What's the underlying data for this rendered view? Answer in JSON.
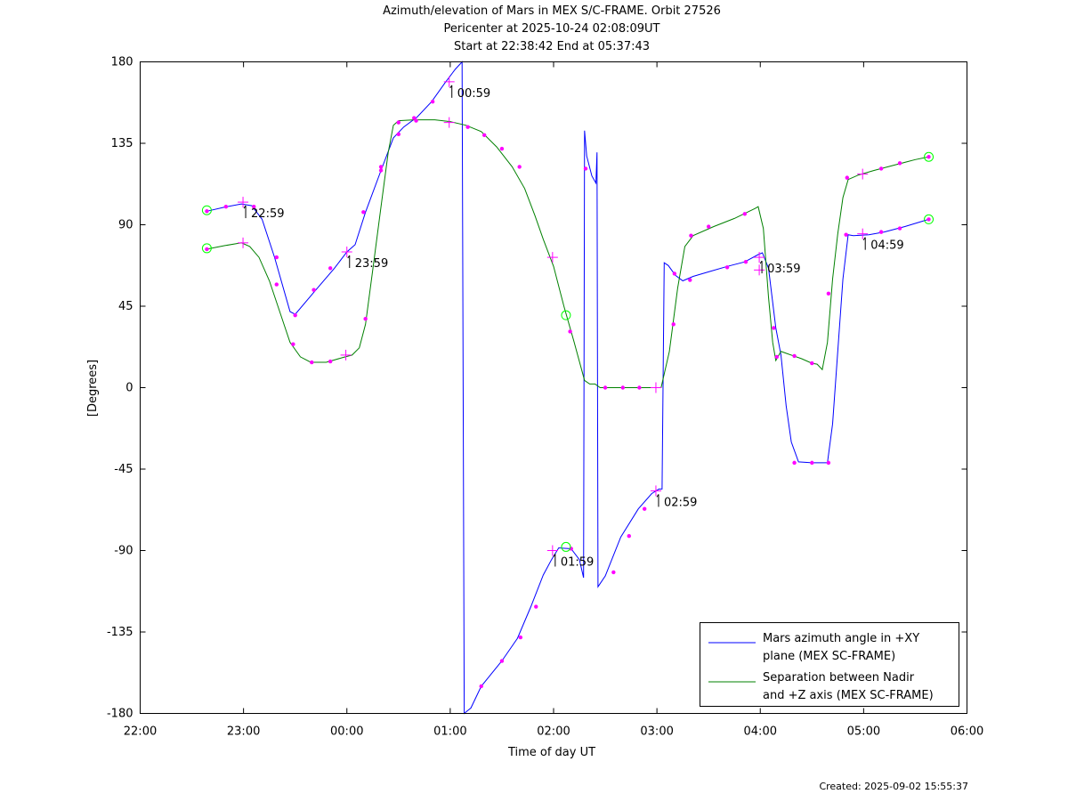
{
  "title_lines": [
    "Azimuth/elevation of Mars in MEX S/C-FRAME.  Orbit 27526",
    "Pericenter at 2025-10-24 02:08:09UT",
    "Start at 22:38:42 End at 05:37:43"
  ],
  "footer": "Created: 2025-09-02 15:55:37",
  "chart_data": {
    "type": "line",
    "xlabel": "Time of day UT",
    "ylabel": "[Degrees]",
    "x_unit": "hours since 22:00",
    "xlim": [
      0,
      8
    ],
    "ylim": [
      -180,
      180
    ],
    "x_ticks": [
      {
        "v": 0,
        "label": "22:00"
      },
      {
        "v": 1,
        "label": "23:00"
      },
      {
        "v": 2,
        "label": "00:00"
      },
      {
        "v": 3,
        "label": "01:00"
      },
      {
        "v": 4,
        "label": "02:00"
      },
      {
        "v": 5,
        "label": "03:00"
      },
      {
        "v": 6,
        "label": "04:00"
      },
      {
        "v": 7,
        "label": "05:00"
      },
      {
        "v": 8,
        "label": "06:00"
      }
    ],
    "y_ticks": [
      {
        "v": 180,
        "label": "180"
      },
      {
        "v": 135,
        "label": "135"
      },
      {
        "v": 90,
        "label": "90"
      },
      {
        "v": 45,
        "label": "45"
      },
      {
        "v": 0,
        "label": "0"
      },
      {
        "v": -45,
        "label": "-45"
      },
      {
        "v": -90,
        "label": "-90"
      },
      {
        "v": -135,
        "label": "-135"
      },
      {
        "v": -180,
        "label": "-180"
      }
    ],
    "legend_position": "bottom-right",
    "series": [
      {
        "name": "Mars azimuth angle in +XY plane (MEX SC-FRAME)",
        "legend_lines": [
          "Mars azimuth angle in +XY",
          "plane (MEX SC-FRAME)"
        ],
        "color": "#0000ff",
        "points": [
          [
            0.645,
            97.5
          ],
          [
            0.82,
            99.8
          ],
          [
            0.98,
            101.5
          ],
          [
            1.08,
            100.5
          ],
          [
            1.18,
            93
          ],
          [
            1.3,
            72
          ],
          [
            1.45,
            42
          ],
          [
            1.5,
            40.5
          ],
          [
            1.7,
            54
          ],
          [
            1.88,
            66
          ],
          [
            2.0,
            75
          ],
          [
            2.08,
            79
          ],
          [
            2.18,
            97
          ],
          [
            2.33,
            120
          ],
          [
            2.45,
            138
          ],
          [
            2.55,
            144
          ],
          [
            2.68,
            149.5
          ],
          [
            2.82,
            158
          ],
          [
            2.95,
            168.5
          ],
          [
            3.05,
            176
          ],
          [
            3.115,
            180
          ],
          [
            3.125,
            0
          ],
          [
            3.135,
            -180
          ],
          [
            3.2,
            -177
          ],
          [
            3.3,
            -165
          ],
          [
            3.5,
            -151
          ],
          [
            3.65,
            -138.5
          ],
          [
            3.78,
            -121
          ],
          [
            3.9,
            -103.5
          ],
          [
            3.98,
            -95
          ],
          [
            4.05,
            -88.5
          ],
          [
            4.17,
            -89
          ],
          [
            4.25,
            -95
          ],
          [
            4.29,
            -105
          ],
          [
            4.3,
            142
          ],
          [
            4.32,
            128
          ],
          [
            4.37,
            117
          ],
          [
            4.41,
            113
          ],
          [
            4.42,
            130
          ],
          [
            4.43,
            -110
          ],
          [
            4.5,
            -104
          ],
          [
            4.65,
            -82.5
          ],
          [
            4.82,
            -67
          ],
          [
            4.95,
            -58.5
          ],
          [
            5.02,
            -56
          ],
          [
            5.05,
            -56
          ],
          [
            5.07,
            69
          ],
          [
            5.11,
            67.5
          ],
          [
            5.18,
            62
          ],
          [
            5.25,
            59
          ],
          [
            5.35,
            61.5
          ],
          [
            5.5,
            64
          ],
          [
            5.68,
            67
          ],
          [
            5.85,
            69.5
          ],
          [
            5.98,
            73.5
          ],
          [
            6.02,
            74.5
          ],
          [
            6.08,
            66
          ],
          [
            6.15,
            33
          ],
          [
            6.2,
            18
          ],
          [
            6.25,
            -10
          ],
          [
            6.3,
            -30
          ],
          [
            6.37,
            -41
          ],
          [
            6.5,
            -41.5
          ],
          [
            6.65,
            -41.5
          ],
          [
            6.7,
            -20
          ],
          [
            6.75,
            20
          ],
          [
            6.8,
            60
          ],
          [
            6.85,
            84.5
          ],
          [
            6.9,
            84
          ],
          [
            7.05,
            84.5
          ],
          [
            7.2,
            86
          ],
          [
            7.4,
            89
          ],
          [
            7.63,
            93
          ]
        ],
        "markers": [
          [
            0.645,
            97.5
          ],
          [
            0.83,
            100
          ],
          [
            1.1,
            100
          ],
          [
            1.32,
            72
          ],
          [
            1.5,
            40
          ],
          [
            1.68,
            54
          ],
          [
            1.84,
            66
          ],
          [
            2.16,
            97
          ],
          [
            2.33,
            120
          ],
          [
            2.5,
            140
          ],
          [
            2.65,
            149
          ],
          [
            2.83,
            158
          ],
          [
            3.3,
            -165
          ],
          [
            3.5,
            -151
          ],
          [
            3.68,
            -138
          ],
          [
            3.83,
            -121
          ],
          [
            4.17,
            -89
          ],
          [
            4.31,
            121
          ],
          [
            4.58,
            -102
          ],
          [
            4.73,
            -82
          ],
          [
            4.88,
            -67
          ],
          [
            5.17,
            63
          ],
          [
            5.32,
            59.5
          ],
          [
            5.68,
            66.5
          ],
          [
            5.86,
            69.5
          ],
          [
            6.13,
            33
          ],
          [
            6.33,
            -41.5
          ],
          [
            6.5,
            -41.5
          ],
          [
            6.66,
            -41.5
          ],
          [
            6.83,
            84.5
          ],
          [
            7.17,
            86
          ],
          [
            7.35,
            88
          ],
          [
            7.63,
            93
          ]
        ],
        "crosses": [
          [
            0.995,
            102.5
          ],
          [
            2.0,
            75
          ],
          [
            2.99,
            169
          ],
          [
            3.99,
            -90
          ],
          [
            4.99,
            -57
          ],
          [
            5.99,
            72
          ],
          [
            6.99,
            85
          ]
        ],
        "circles": [
          [
            0.645,
            98
          ],
          [
            4.12,
            -88
          ],
          [
            7.63,
            93
          ]
        ]
      },
      {
        "name": "Separation between Nadir and +Z axis (MEX SC-FRAME)",
        "legend_lines": [
          "Separation between Nadir",
          "and +Z axis (MEX SC-FRAME)"
        ],
        "color": "#008000",
        "points": [
          [
            0.645,
            76.5
          ],
          [
            0.82,
            78.5
          ],
          [
            0.98,
            80
          ],
          [
            1.06,
            78
          ],
          [
            1.15,
            72
          ],
          [
            1.25,
            59
          ],
          [
            1.35,
            42
          ],
          [
            1.45,
            25
          ],
          [
            1.55,
            17
          ],
          [
            1.65,
            14
          ],
          [
            1.8,
            14
          ],
          [
            1.95,
            16.5
          ],
          [
            2.05,
            18
          ],
          [
            2.12,
            22
          ],
          [
            2.18,
            35
          ],
          [
            2.25,
            65
          ],
          [
            2.33,
            100
          ],
          [
            2.4,
            130
          ],
          [
            2.45,
            145
          ],
          [
            2.5,
            147.5
          ],
          [
            2.65,
            148
          ],
          [
            2.85,
            148
          ],
          [
            3.0,
            147
          ],
          [
            3.15,
            145
          ],
          [
            3.3,
            141.5
          ],
          [
            3.45,
            133
          ],
          [
            3.6,
            122
          ],
          [
            3.72,
            110
          ],
          [
            3.82,
            95
          ],
          [
            3.9,
            82
          ],
          [
            4.0,
            67
          ],
          [
            4.1,
            45
          ],
          [
            4.2,
            25
          ],
          [
            4.3,
            4
          ],
          [
            4.35,
            2
          ],
          [
            4.4,
            2
          ],
          [
            4.45,
            0
          ],
          [
            5.0,
            0
          ],
          [
            5.04,
            0
          ],
          [
            5.12,
            20
          ],
          [
            5.2,
            55
          ],
          [
            5.27,
            78
          ],
          [
            5.35,
            84
          ],
          [
            5.55,
            89
          ],
          [
            5.75,
            93.5
          ],
          [
            5.95,
            99
          ],
          [
            5.98,
            100
          ],
          [
            6.03,
            88
          ],
          [
            6.08,
            50
          ],
          [
            6.12,
            25
          ],
          [
            6.15,
            15
          ],
          [
            6.2,
            20
          ],
          [
            6.25,
            19
          ],
          [
            6.4,
            16
          ],
          [
            6.5,
            13.5
          ],
          [
            6.55,
            13
          ],
          [
            6.6,
            10
          ],
          [
            6.65,
            25
          ],
          [
            6.7,
            60
          ],
          [
            6.75,
            85
          ],
          [
            6.8,
            105
          ],
          [
            6.85,
            115
          ],
          [
            6.95,
            117.5
          ],
          [
            7.1,
            120
          ],
          [
            7.3,
            123
          ],
          [
            7.5,
            126
          ],
          [
            7.63,
            127.5
          ]
        ],
        "markers": [
          [
            0.645,
            76.5
          ],
          [
            1.32,
            57
          ],
          [
            1.48,
            24
          ],
          [
            1.66,
            14
          ],
          [
            1.84,
            14.5
          ],
          [
            2.18,
            38
          ],
          [
            2.33,
            122
          ],
          [
            2.5,
            146.5
          ],
          [
            2.67,
            147.5
          ],
          [
            3.17,
            144
          ],
          [
            3.33,
            139.5
          ],
          [
            3.5,
            132
          ],
          [
            3.67,
            122
          ],
          [
            4.16,
            31
          ],
          [
            4.5,
            0
          ],
          [
            4.67,
            0
          ],
          [
            4.83,
            0
          ],
          [
            5.16,
            35
          ],
          [
            5.33,
            84
          ],
          [
            5.5,
            89
          ],
          [
            5.85,
            96
          ],
          [
            6.16,
            17
          ],
          [
            6.33,
            17.5
          ],
          [
            6.5,
            13.5
          ],
          [
            6.66,
            52
          ],
          [
            6.84,
            116
          ],
          [
            7.17,
            121
          ],
          [
            7.35,
            124
          ],
          [
            7.63,
            127.5
          ]
        ],
        "crosses": [
          [
            0.995,
            80
          ],
          [
            1.99,
            18
          ],
          [
            2.99,
            146.5
          ],
          [
            3.99,
            72
          ],
          [
            4.99,
            0
          ],
          [
            5.99,
            65
          ],
          [
            6.99,
            118
          ]
        ],
        "circles": [
          [
            0.645,
            77
          ],
          [
            4.12,
            40
          ],
          [
            7.63,
            127.5
          ]
        ]
      }
    ],
    "annotations": [
      {
        "x": 0.995,
        "y": 102.5,
        "text": "22:59"
      },
      {
        "x": 2.0,
        "y": 75,
        "text": "23:59"
      },
      {
        "x": 2.99,
        "y": 169,
        "text": "00:59"
      },
      {
        "x": 3.99,
        "y": -90,
        "text": "01:59"
      },
      {
        "x": 4.99,
        "y": -57,
        "text": "02:59"
      },
      {
        "x": 5.99,
        "y": 72,
        "text": "03:59"
      },
      {
        "x": 6.99,
        "y": 85,
        "text": "04:59"
      }
    ]
  }
}
